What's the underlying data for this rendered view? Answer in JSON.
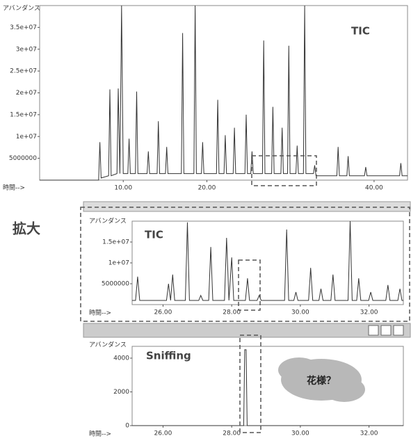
{
  "chart_data": [
    {
      "type": "line",
      "annotation": "TIC",
      "ylabel": "アバンダンス",
      "xlabel": "時間-->",
      "color": "#333333",
      "xlim": [
        0,
        44
      ],
      "ylim": [
        0,
        40000000
      ],
      "xticks": [
        {
          "value": 10,
          "label": "10.00"
        },
        {
          "value": 20,
          "label": "20.00"
        },
        {
          "value": 40,
          "label": "40.00"
        }
      ],
      "yticks": [
        5000000,
        {
          "value": 10000000,
          "label": "1e+07"
        },
        {
          "value": 15000000,
          "label": "1.5e+07"
        },
        {
          "value": 20000000,
          "label": "2e+07"
        },
        {
          "value": 25000000,
          "label": "2.5e+07"
        },
        {
          "value": 30000000,
          "label": "3e+07"
        },
        {
          "value": 35000000,
          "label": "3.5e+07"
        }
      ],
      "x": [
        0,
        7.05,
        7.2,
        7.35,
        8.25,
        8.4,
        8.55,
        9.25,
        9.4,
        9.6,
        9.8,
        10.0,
        10.55,
        10.7,
        10.85,
        11.45,
        11.6,
        11.75,
        12.85,
        13,
        13.15,
        14.05,
        14.2,
        14.35,
        15.05,
        15.2,
        15.35,
        16.95,
        17.1,
        17.25,
        18.45,
        18.6,
        18.75,
        19.35,
        19.5,
        19.65,
        21.15,
        21.3,
        21.45,
        22.05,
        22.2,
        22.35,
        23.15,
        23.3,
        23.45,
        24.55,
        24.7,
        24.85,
        25.25,
        25.4,
        25.55,
        26.65,
        26.8,
        26.95,
        27.75,
        27.9,
        28.05,
        28.85,
        29,
        29.15,
        29.65,
        29.8,
        29.95,
        30.65,
        30.8,
        30.95,
        31.55,
        31.7,
        31.85,
        32.75,
        32.9,
        33.05,
        35.55,
        35.7,
        35.85,
        36.75,
        36.9,
        37.05,
        38.85,
        39,
        39.15,
        43.05,
        43.2,
        43.35,
        44
      ],
      "values": [
        0,
        0,
        8700000,
        500000,
        1000000,
        20800000,
        1000000,
        1500000,
        21000000,
        1500000,
        40000000,
        1500000,
        1500000,
        9500000,
        1500000,
        1500000,
        20300000,
        1500000,
        1500000,
        6600000,
        1500000,
        1500000,
        13500000,
        1500000,
        1500000,
        7600000,
        1500000,
        1500000,
        33700000,
        1500000,
        1500000,
        40000000,
        1500000,
        1500000,
        8700000,
        1500000,
        1500000,
        18400000,
        1500000,
        1500000,
        10300000,
        1500000,
        1500000,
        12000000,
        1500000,
        1500000,
        15000000,
        1500000,
        1500000,
        6600000,
        1500000,
        1500000,
        32000000,
        1500000,
        1500000,
        16800000,
        1500000,
        1500000,
        12000000,
        1500000,
        1500000,
        30800000,
        1500000,
        1500000,
        7900000,
        1500000,
        1500000,
        40000000,
        1500000,
        1500000,
        3400000,
        1000000,
        1000000,
        7600000,
        1000000,
        1000000,
        5500000,
        1000000,
        1000000,
        3000000,
        1000000,
        1000000,
        3900000,
        1000000,
        1000000
      ]
    },
    {
      "type": "line",
      "annotation": "TIC",
      "ylabel": "アバンダンス",
      "xlabel": "時間-->",
      "color": "#333333",
      "xlim": [
        25.1,
        33
      ],
      "ylim": [
        0,
        20000000
      ],
      "xticks": [
        {
          "value": 26,
          "label": "26.00"
        },
        {
          "value": 28,
          "label": "28.00"
        },
        {
          "value": 30,
          "label": "30.00"
        },
        {
          "value": 32,
          "label": "32.00"
        }
      ],
      "yticks": [
        5000000,
        {
          "value": 10000000,
          "label": "1e+07"
        },
        {
          "value": 15000000,
          "label": "1.5e+07"
        }
      ],
      "x": [
        25.1,
        25.2,
        25.26,
        25.32,
        26.1,
        26.16,
        26.22,
        26.28,
        26.34,
        26.65,
        26.71,
        26.77,
        27.04,
        27.1,
        27.16,
        27.33,
        27.39,
        27.45,
        27.79,
        27.85,
        27.92,
        28.0,
        28.06,
        28.4,
        28.46,
        28.52,
        28.74,
        28.8,
        28.86,
        29.54,
        29.6,
        29.66,
        29.81,
        29.87,
        29.93,
        30.24,
        30.3,
        30.36,
        30.54,
        30.6,
        30.66,
        30.89,
        30.95,
        31.01,
        31.39,
        31.45,
        31.51,
        31.64,
        31.7,
        31.76,
        31.99,
        32.05,
        32.11,
        32.49,
        32.55,
        32.61,
        32.84,
        32.9,
        32.96,
        33
      ],
      "values": [
        1000000,
        1000000,
        6700000,
        1000000,
        1000000,
        5000000,
        1000000,
        7200000,
        1000000,
        1000000,
        19700000,
        1000000,
        1000000,
        2200000,
        1000000,
        1000000,
        13800000,
        1000000,
        1000000,
        16000000,
        1000000,
        11300000,
        1000000,
        1000000,
        6300000,
        1000000,
        1000000,
        2200000,
        1000000,
        1000000,
        18000000,
        1000000,
        1000000,
        3000000,
        1000000,
        1000000,
        8800000,
        1000000,
        1000000,
        3800000,
        1000000,
        1000000,
        7200000,
        1000000,
        1000000,
        20000000,
        1000000,
        1000000,
        6300000,
        1000000,
        1000000,
        3000000,
        1000000,
        1000000,
        4700000,
        1000000,
        1000000,
        3800000,
        1000000,
        1000000
      ]
    },
    {
      "type": "line",
      "annotation": "Sniffing",
      "ylabel": "アバンダンス",
      "xlabel": "時間-->",
      "color": "#333333",
      "note": "花様？",
      "xlim": [
        25.1,
        33
      ],
      "ylim": [
        0,
        4700
      ],
      "xticks": [
        {
          "value": 26,
          "label": "26.00"
        },
        {
          "value": 28,
          "label": "28.00"
        },
        {
          "value": 30,
          "label": "30.00"
        },
        {
          "value": 32,
          "label": "32.00"
        }
      ],
      "yticks": [
        0,
        2000,
        4000
      ],
      "x": [
        25.1,
        28.35,
        28.38,
        28.42,
        28.45,
        33
      ],
      "values": [
        0,
        0,
        4500,
        4500,
        0,
        0
      ]
    }
  ],
  "callout": "拡大"
}
